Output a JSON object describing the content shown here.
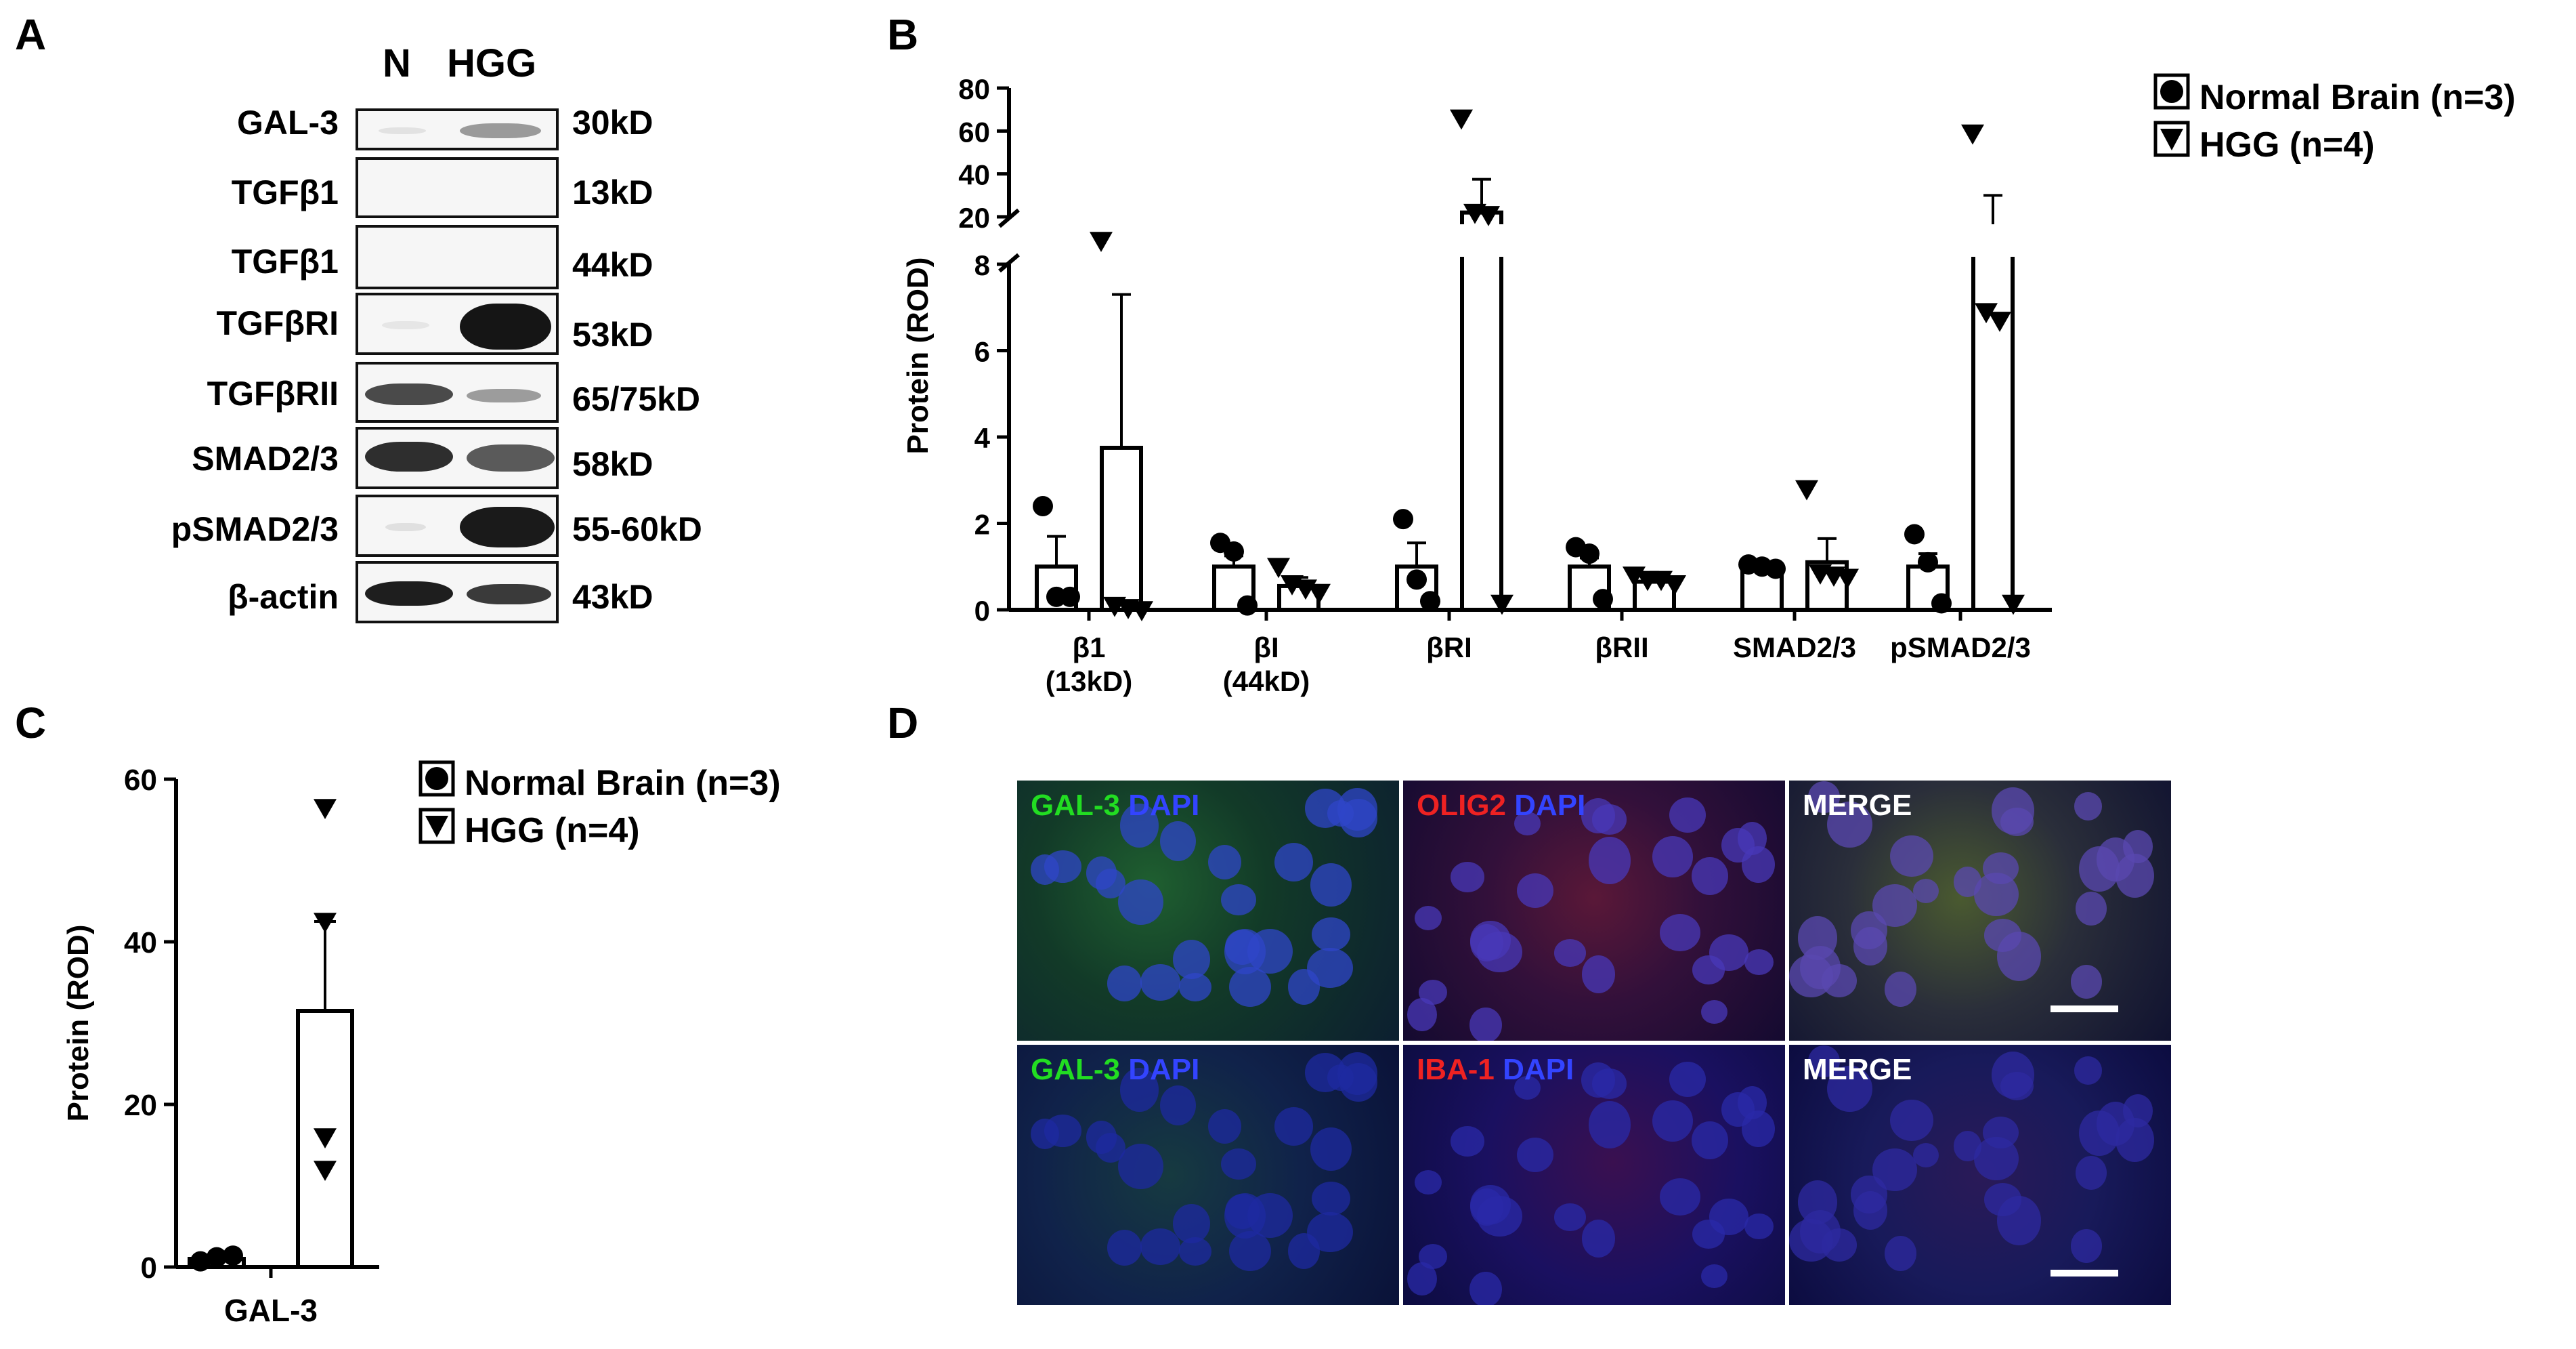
{
  "panel_letters": {
    "a": "A",
    "b": "B",
    "c": "C",
    "d": "D"
  },
  "western_blot": {
    "lanes": [
      "N",
      "HGG"
    ],
    "rows": [
      {
        "protein": "GAL-3",
        "size": "30kD"
      },
      {
        "protein": "TGFβ1",
        "size": "13kD"
      },
      {
        "protein": "TGFβ1",
        "size": "44kD"
      },
      {
        "protein": "TGFβRI",
        "size": "53kD"
      },
      {
        "protein": "TGFβRII",
        "size": "65/75kD"
      },
      {
        "protein": "SMAD2/3",
        "size": "58kD"
      },
      {
        "protein": "pSMAD2/3",
        "size": "55-60kD"
      },
      {
        "protein": "β-actin",
        "size": "43kD"
      }
    ]
  },
  "legend": {
    "normal": "Normal Brain (n=3)",
    "hgg": "HGG (n=4)"
  },
  "chart_data": [
    {
      "type": "bar",
      "panel": "B",
      "ylabel": "Protein (ROD)",
      "xlabel": "",
      "axis_break": {
        "lower": [
          0,
          8
        ],
        "upper": [
          20,
          80
        ]
      },
      "yticks_lower": [
        0,
        2,
        4,
        6,
        8
      ],
      "yticks_upper": [
        20,
        40,
        60,
        80
      ],
      "categories": [
        "β1\n(13kD)",
        "βI\n(44kD)",
        "βRI",
        "βRII",
        "SMAD2/3",
        "pSMAD2/3"
      ],
      "series": [
        {
          "name": "Normal Brain (n=3)",
          "marker": "circle",
          "values": [
            1.0,
            1.0,
            1.0,
            1.0,
            1.0,
            1.0
          ],
          "sem": [
            0.7,
            0.25,
            0.55,
            0.2,
            0.05,
            0.3
          ],
          "points": [
            [
              2.4,
              0.3,
              0.3
            ],
            [
              1.55,
              1.35,
              0.1
            ],
            [
              2.1,
              0.7,
              0.2
            ],
            [
              1.45,
              1.3,
              0.25
            ],
            [
              1.05,
              1.0,
              0.95
            ],
            [
              1.75,
              1.1,
              0.15
            ]
          ]
        },
        {
          "name": "HGG (n=4)",
          "marker": "triangle",
          "values": [
            3.75,
            0.55,
            22.0,
            0.65,
            1.1,
            17.0
          ],
          "sem": [
            3.55,
            0.2,
            15.5,
            0.1,
            0.55,
            13.0
          ],
          "points": [
            [
              15.0,
              0.1,
              0.05,
              0.0
            ],
            [
              1.0,
              0.6,
              0.5,
              0.4
            ],
            [
              66.0,
              22.0,
              21.0,
              0.15
            ],
            [
              0.8,
              0.7,
              0.7,
              0.6
            ],
            [
              2.8,
              0.85,
              0.8,
              0.75
            ],
            [
              59.0,
              6.9,
              6.7,
              0.15
            ]
          ]
        }
      ],
      "legend_position": "top-right"
    },
    {
      "type": "bar",
      "panel": "C",
      "ylabel": "Protein (ROD)",
      "xlabel": "",
      "ylim": [
        0,
        60
      ],
      "yticks": [
        0,
        20,
        40,
        60
      ],
      "categories": [
        "GAL-3"
      ],
      "series": [
        {
          "name": "Normal Brain (n=3)",
          "marker": "circle",
          "values": [
            1.0
          ],
          "sem": [
            0.2
          ],
          "points": [
            [
              0.7,
              1.2,
              1.4
            ]
          ]
        },
        {
          "name": "HGG (n=4)",
          "marker": "triangle",
          "values": [
            31.5
          ],
          "sem": [
            11.0
          ],
          "points": [
            [
              56.5,
              42.5,
              16.0,
              12.0
            ]
          ]
        }
      ],
      "legend_position": "top-right"
    }
  ],
  "microscopy": {
    "panels": [
      {
        "parts": [
          {
            "text": "GAL-3",
            "color": "#22dd22"
          },
          {
            "text": " DAPI",
            "color": "#3344ff"
          }
        ],
        "tint": "green",
        "scalebar": false
      },
      {
        "parts": [
          {
            "text": "OLIG2",
            "color": "#ee2222"
          },
          {
            "text": " DAPI",
            "color": "#3344ff"
          }
        ],
        "tint": "red",
        "scalebar": false
      },
      {
        "parts": [
          {
            "text": "MERGE",
            "color": "#ffffff"
          }
        ],
        "tint": "merge",
        "scalebar": true
      },
      {
        "parts": [
          {
            "text": "GAL-3",
            "color": "#22dd22"
          },
          {
            "text": " DAPI",
            "color": "#3344ff"
          }
        ],
        "tint": "green-dim",
        "scalebar": false
      },
      {
        "parts": [
          {
            "text": "IBA-1",
            "color": "#ee2222"
          },
          {
            "text": " DAPI",
            "color": "#3344ff"
          }
        ],
        "tint": "red-dim",
        "scalebar": false
      },
      {
        "parts": [
          {
            "text": "MERGE",
            "color": "#ffffff"
          }
        ],
        "tint": "merge-dim",
        "scalebar": true
      }
    ]
  }
}
